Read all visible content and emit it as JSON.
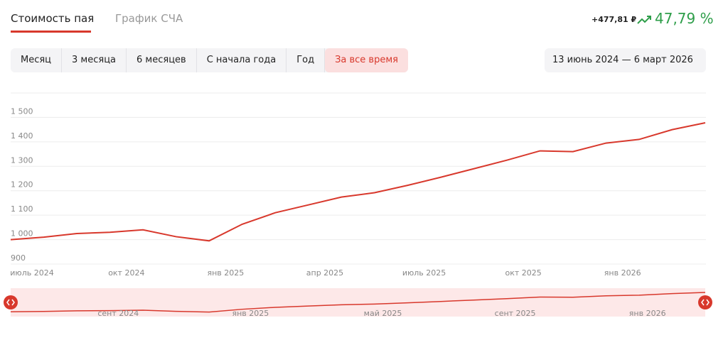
{
  "tabs": [
    "Стоимость пая",
    "График СЧА"
  ],
  "active_tab": 0,
  "change": {
    "amount": "+477,81 ₽",
    "percent": "47,79 %"
  },
  "periods": [
    "Месяц",
    "3 месяца",
    "6 месяцев",
    "С начала года",
    "Год",
    "За все время"
  ],
  "active_period": 5,
  "date_range": "13 июнь 2024 — 6 март 2026",
  "chart_data": {
    "type": "line",
    "x": [
      "2024-06",
      "2024-07",
      "2024-08",
      "2024-09",
      "2024-10",
      "2024-11",
      "2024-12",
      "2025-01",
      "2025-02",
      "2025-03",
      "2025-04",
      "2025-05",
      "2025-06",
      "2025-07",
      "2025-08",
      "2025-09",
      "2025-10",
      "2025-11",
      "2025-12",
      "2026-01",
      "2026-02",
      "2026-03"
    ],
    "values": [
      1000,
      1010,
      1025,
      1030,
      1040,
      1012,
      995,
      1063,
      1110,
      1142,
      1174,
      1192,
      1222,
      1255,
      1290,
      1325,
      1363,
      1360,
      1395,
      1410,
      1450,
      1478
    ],
    "color": "#d8382c",
    "ylim": [
      900,
      1600
    ],
    "yticks": [
      900,
      {
        "value": 1000,
        "label": "1 000"
      },
      {
        "value": 1100,
        "label": "1 100"
      },
      {
        "value": 1200,
        "label": "1 200"
      },
      {
        "value": 1300,
        "label": "1 300"
      },
      {
        "value": 1400,
        "label": "1 400"
      },
      {
        "value": 1500,
        "label": "1 500"
      }
    ],
    "xticks": [
      {
        "value": "2024-07",
        "label": "июль 2024"
      },
      {
        "value": "2024-10",
        "label": "окт 2024"
      },
      {
        "value": "2025-01",
        "label": "янв 2025"
      },
      {
        "value": "2025-04",
        "label": "апр 2025"
      },
      {
        "value": "2025-07",
        "label": "июль 2025"
      },
      {
        "value": "2025-10",
        "label": "окт 2025"
      },
      {
        "value": "2026-01",
        "label": "янв 2026"
      }
    ],
    "navigator_xticks": [
      {
        "value": "2024-09",
        "label": "сент 2024"
      },
      {
        "value": "2025-01",
        "label": "янв 2025"
      },
      {
        "value": "2025-05",
        "label": "май 2025"
      },
      {
        "value": "2025-09",
        "label": "сент 2025"
      },
      {
        "value": "2026-01",
        "label": "янв 2026"
      }
    ],
    "grid": true
  }
}
